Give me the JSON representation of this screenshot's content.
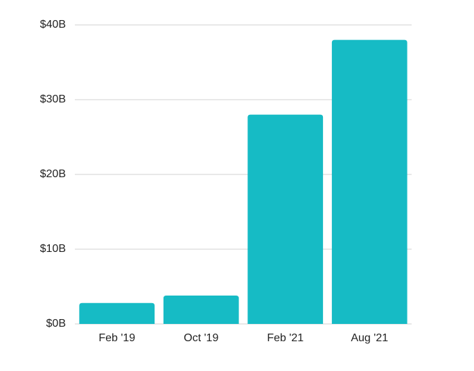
{
  "chart_data": {
    "type": "bar",
    "categories": [
      "Feb '19",
      "Oct '19",
      "Feb '21",
      "Aug '21"
    ],
    "values": [
      2.8,
      3.8,
      28,
      38
    ],
    "color": "#16bbc5",
    "ylim": [
      0,
      40
    ],
    "yticks": [
      {
        "value": 0,
        "label": "$0B"
      },
      {
        "value": 10,
        "label": "$10B"
      },
      {
        "value": 20,
        "label": "$20B"
      },
      {
        "value": 30,
        "label": "$30B"
      },
      {
        "value": 40,
        "label": "$40B"
      }
    ],
    "grid": true
  }
}
